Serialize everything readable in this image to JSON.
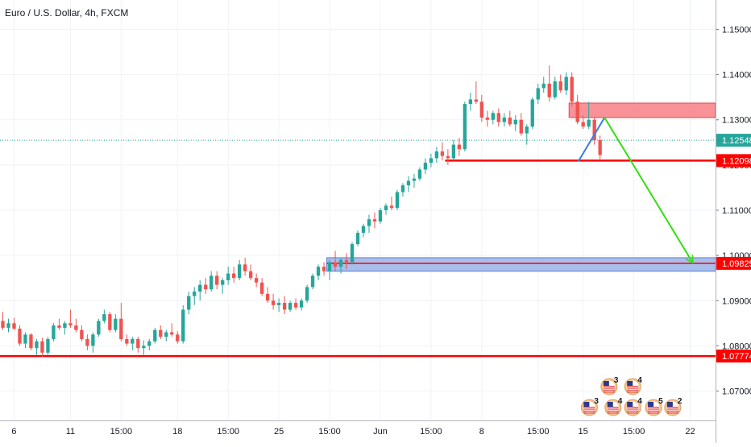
{
  "chart_data": {
    "type": "candlestick",
    "title": "Euro / U.S. Dollar, 4h, FXCM",
    "y_axis": {
      "position": "right",
      "range": [
        1.0635,
        1.1565
      ],
      "ticks": [
        "1.15000",
        "1.14000",
        "1.13000",
        "1.12000",
        "1.11000",
        "1.10000",
        "1.09000",
        "1.08000",
        "1.07000"
      ]
    },
    "x_axis": {
      "ticks": [
        {
          "label": "6",
          "bar": 2
        },
        {
          "label": "11",
          "bar": 12
        },
        {
          "label": "15:00",
          "bar": 21
        },
        {
          "label": "18",
          "bar": 31
        },
        {
          "label": "15:00",
          "bar": 40
        },
        {
          "label": "25",
          "bar": 49
        },
        {
          "label": "15:00",
          "bar": 58
        },
        {
          "label": "Jun",
          "bar": 67
        },
        {
          "label": "15:00",
          "bar": 76
        },
        {
          "label": "8",
          "bar": 85
        },
        {
          "label": "15:00",
          "bar": 95
        },
        {
          "label": "15",
          "bar": 103
        },
        {
          "label": "15:00",
          "bar": 112
        },
        {
          "label": "22",
          "bar": 122
        }
      ],
      "total_bars": 127
    },
    "current_price": {
      "value": 1.12548,
      "label": "1.12548",
      "color": "#26a69a"
    },
    "levels": [
      {
        "name": "support-1.07774",
        "value": 1.07774,
        "label": "1.07774",
        "color": "#ff0000",
        "from_bar": 0
      },
      {
        "name": "support-1.12098",
        "value": 1.12098,
        "label": "1.12098",
        "color": "#ff0000",
        "from_bar": 79
      },
      {
        "name": "target-1.09825",
        "value": 1.09825,
        "label": "1.09825",
        "color": "#ff0000",
        "from_bar": 58
      }
    ],
    "zones": [
      {
        "name": "resistance-zone",
        "from_bar": 101,
        "to_bar": 127,
        "top": 1.1337,
        "bottom": 1.1305,
        "fill": "#f7868b",
        "stroke": "#e04b52"
      },
      {
        "name": "target-zone",
        "from_bar": 58,
        "to_bar": 127,
        "top": 1.0995,
        "bottom": 1.0965,
        "fill": "#9fb7ea",
        "stroke": "#5a7fd6"
      }
    ],
    "projection": [
      {
        "name": "blue-leg",
        "color": "#3d7fe0",
        "from": {
          "bar": 102.2,
          "price": 1.1209
        },
        "to": {
          "bar": 106.8,
          "price": 1.1305
        }
      },
      {
        "name": "green-leg",
        "color": "#33e010",
        "from": {
          "bar": 106.8,
          "price": 1.1305
        },
        "to": {
          "bar": 122.4,
          "price": 1.0985
        }
      }
    ],
    "events": [
      {
        "count": "3",
        "bar": 107.6,
        "row": 1
      },
      {
        "count": "4",
        "bar": 111.8,
        "row": 1
      },
      {
        "count": "3",
        "bar": 104.1,
        "row": 2
      },
      {
        "count": "4",
        "bar": 108.3,
        "row": 2
      },
      {
        "count": "4",
        "bar": 111.8,
        "row": 2
      },
      {
        "count": "5",
        "bar": 115.5,
        "row": 2
      },
      {
        "count": "2",
        "bar": 118.9,
        "row": 2
      }
    ],
    "candle_colors": {
      "up": "#26a69a",
      "down": "#ef5350"
    },
    "candles": [
      [
        1.0855,
        1.0875,
        1.0835,
        1.084
      ],
      [
        1.084,
        1.086,
        1.083,
        1.085
      ],
      [
        1.085,
        1.0862,
        1.0835,
        1.0838
      ],
      [
        1.0838,
        1.0845,
        1.08,
        1.0805
      ],
      [
        1.0805,
        1.083,
        1.0795,
        1.0825
      ],
      [
        1.0825,
        1.0828,
        1.079,
        1.0795
      ],
      [
        1.0795,
        1.0815,
        1.078,
        1.081
      ],
      [
        1.081,
        1.0818,
        1.0775,
        1.0785
      ],
      [
        1.0785,
        1.082,
        1.078,
        1.0815
      ],
      [
        1.0815,
        1.085,
        1.081,
        1.0845
      ],
      [
        1.0845,
        1.086,
        1.0835,
        1.084
      ],
      [
        1.084,
        1.0855,
        1.0825,
        1.085
      ],
      [
        1.085,
        1.088,
        1.084,
        1.0845
      ],
      [
        1.0845,
        1.086,
        1.083,
        1.0835
      ],
      [
        1.0835,
        1.0845,
        1.081,
        1.0815
      ],
      [
        1.0815,
        1.0825,
        1.079,
        1.08
      ],
      [
        1.08,
        1.083,
        1.0785,
        1.0825
      ],
      [
        1.0825,
        1.086,
        1.082,
        1.0855
      ],
      [
        1.0855,
        1.088,
        1.085,
        1.087
      ],
      [
        1.087,
        1.0875,
        1.083,
        1.0835
      ],
      [
        1.0835,
        1.087,
        1.083,
        1.086
      ],
      [
        1.086,
        1.0895,
        1.081,
        1.0815
      ],
      [
        1.0815,
        1.0825,
        1.08,
        1.0805
      ],
      [
        1.0805,
        1.082,
        1.079,
        1.0815
      ],
      [
        1.0815,
        1.082,
        1.0785,
        1.0795
      ],
      [
        1.0795,
        1.0812,
        1.078,
        1.08
      ],
      [
        1.08,
        1.0815,
        1.079,
        1.081
      ],
      [
        1.081,
        1.084,
        1.0805,
        1.0835
      ],
      [
        1.0835,
        1.0845,
        1.0815,
        1.082
      ],
      [
        1.082,
        1.0835,
        1.081,
        1.083
      ],
      [
        1.083,
        1.085,
        1.082,
        1.0825
      ],
      [
        1.0825,
        1.0832,
        1.0805,
        1.081
      ],
      [
        1.081,
        1.089,
        1.0805,
        1.088
      ],
      [
        1.088,
        1.092,
        1.087,
        1.091
      ],
      [
        1.091,
        1.093,
        1.089,
        1.092
      ],
      [
        1.092,
        1.0945,
        1.09,
        1.0935
      ],
      [
        1.0935,
        1.095,
        1.0915,
        1.0925
      ],
      [
        1.0925,
        1.0965,
        1.092,
        1.0955
      ],
      [
        1.0955,
        1.0965,
        1.0925,
        1.0935
      ],
      [
        1.0935,
        1.095,
        1.0915,
        1.0945
      ],
      [
        1.0945,
        1.0975,
        1.0935,
        1.096
      ],
      [
        1.096,
        1.0975,
        1.094,
        1.095
      ],
      [
        1.095,
        1.099,
        1.0945,
        1.098
      ],
      [
        1.098,
        1.0995,
        1.0955,
        1.0965
      ],
      [
        1.0965,
        1.098,
        1.0945,
        1.095
      ],
      [
        1.095,
        1.096,
        1.093,
        1.094
      ],
      [
        1.094,
        1.095,
        1.091,
        1.0915
      ],
      [
        1.0915,
        1.093,
        1.0895,
        1.09
      ],
      [
        1.09,
        1.0915,
        1.088,
        1.089
      ],
      [
        1.089,
        1.0905,
        1.0875,
        1.0895
      ],
      [
        1.0895,
        1.091,
        1.087,
        1.088
      ],
      [
        1.088,
        1.09,
        1.0875,
        1.0895
      ],
      [
        1.0895,
        1.0905,
        1.088,
        1.0885
      ],
      [
        1.0885,
        1.0905,
        1.0878,
        1.09
      ],
      [
        1.09,
        1.0935,
        1.0895,
        1.093
      ],
      [
        1.093,
        1.096,
        1.0925,
        1.0955
      ],
      [
        1.0955,
        1.098,
        1.0945,
        1.0975
      ],
      [
        1.0975,
        1.0985,
        1.0955,
        1.0965
      ],
      [
        1.0965,
        1.099,
        1.0945,
        1.0985
      ],
      [
        1.0985,
        1.101,
        1.0965,
        1.0975
      ],
      [
        1.0975,
        1.0995,
        1.096,
        1.099
      ],
      [
        1.099,
        1.1005,
        1.097,
        1.0985
      ],
      [
        1.0985,
        1.103,
        1.098,
        1.1025
      ],
      [
        1.1025,
        1.1055,
        1.102,
        1.105
      ],
      [
        1.105,
        1.107,
        1.104,
        1.1065
      ],
      [
        1.1065,
        1.109,
        1.105,
        1.108
      ],
      [
        1.108,
        1.1095,
        1.106,
        1.1075
      ],
      [
        1.1075,
        1.1105,
        1.107,
        1.11
      ],
      [
        1.11,
        1.1115,
        1.109,
        1.111
      ],
      [
        1.111,
        1.113,
        1.11,
        1.1105
      ],
      [
        1.1105,
        1.1145,
        1.11,
        1.114
      ],
      [
        1.114,
        1.116,
        1.113,
        1.1155
      ],
      [
        1.1155,
        1.1175,
        1.114,
        1.1165
      ],
      [
        1.1165,
        1.118,
        1.115,
        1.117
      ],
      [
        1.117,
        1.1195,
        1.1165,
        1.119
      ],
      [
        1.119,
        1.1215,
        1.118,
        1.1205
      ],
      [
        1.1205,
        1.1225,
        1.1195,
        1.1215
      ],
      [
        1.1215,
        1.124,
        1.1205,
        1.123
      ],
      [
        1.123,
        1.125,
        1.121,
        1.122
      ],
      [
        1.122,
        1.1235,
        1.12,
        1.1215
      ],
      [
        1.1215,
        1.1255,
        1.121,
        1.1245
      ],
      [
        1.1245,
        1.126,
        1.122,
        1.1235
      ],
      [
        1.1235,
        1.134,
        1.123,
        1.1335
      ],
      [
        1.1335,
        1.136,
        1.132,
        1.1345
      ],
      [
        1.1345,
        1.1385,
        1.1335,
        1.134
      ],
      [
        1.134,
        1.1355,
        1.1295,
        1.1305
      ],
      [
        1.1305,
        1.132,
        1.1285,
        1.13
      ],
      [
        1.13,
        1.132,
        1.129,
        1.1315
      ],
      [
        1.1315,
        1.1325,
        1.1285,
        1.1295
      ],
      [
        1.1295,
        1.1315,
        1.1285,
        1.1305
      ],
      [
        1.1305,
        1.132,
        1.1285,
        1.129
      ],
      [
        1.129,
        1.131,
        1.1275,
        1.13
      ],
      [
        1.13,
        1.1315,
        1.1265,
        1.127
      ],
      [
        1.127,
        1.129,
        1.1245,
        1.1285
      ],
      [
        1.1285,
        1.135,
        1.128,
        1.1345
      ],
      [
        1.1345,
        1.138,
        1.1335,
        1.137
      ],
      [
        1.137,
        1.1395,
        1.136,
        1.138
      ],
      [
        1.138,
        1.142,
        1.134,
        1.135
      ],
      [
        1.135,
        1.1395,
        1.1345,
        1.1385
      ],
      [
        1.1385,
        1.14,
        1.136,
        1.1365
      ],
      [
        1.1365,
        1.1405,
        1.1355,
        1.1395
      ],
      [
        1.1395,
        1.1405,
        1.133,
        1.134
      ],
      [
        1.134,
        1.1355,
        1.129,
        1.1295
      ],
      [
        1.1295,
        1.131,
        1.128,
        1.1285
      ],
      [
        1.1285,
        1.134,
        1.128,
        1.13
      ],
      [
        1.13,
        1.1305,
        1.1245,
        1.1255
      ],
      [
        1.1255,
        1.1265,
        1.121,
        1.1222
      ]
    ]
  }
}
